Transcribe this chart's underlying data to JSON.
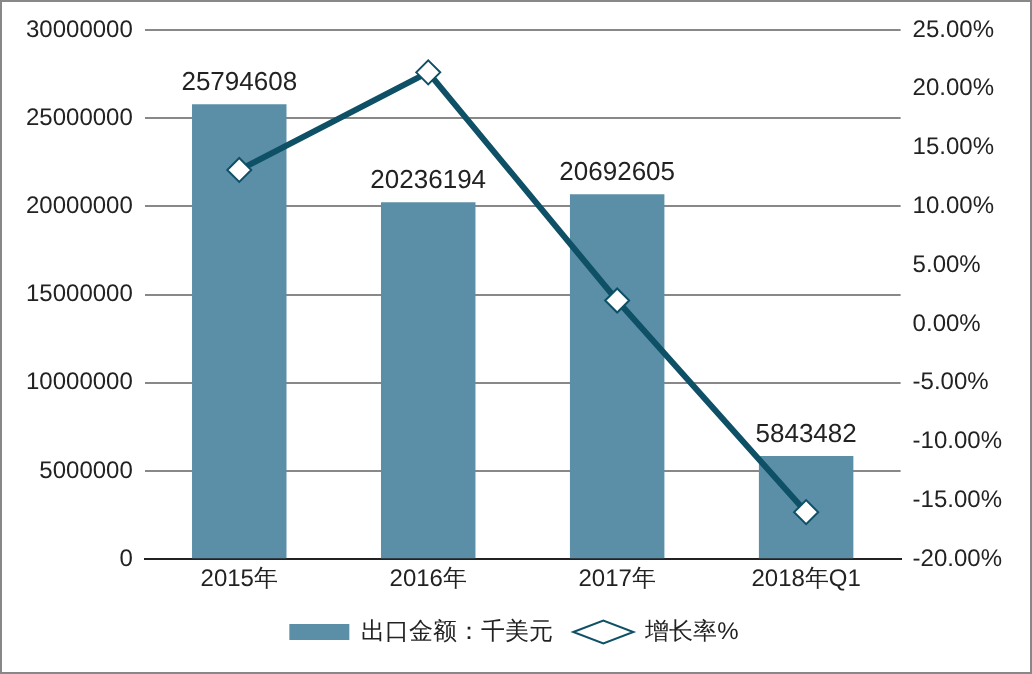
{
  "chart_data": {
    "type": "bar",
    "categories": [
      "2015年",
      "2016年",
      "2017年",
      "2018年Q1"
    ],
    "series": [
      {
        "name": "出口金额：千美元",
        "color": "#5b8fa8",
        "values": [
          25794608,
          20236194,
          20692605,
          5843482
        ],
        "value_labels": [
          "25794608",
          "20236194",
          "20692605",
          "5843482"
        ]
      },
      {
        "name": "增长率%",
        "type": "line",
        "axis": "y2",
        "color": "#0e5066",
        "values": [
          13.1,
          21.4,
          2.0,
          -16.0
        ],
        "marker": "diamond",
        "line_style": "solid"
      }
    ],
    "ylim": [
      0,
      30000000
    ],
    "yticks": [
      0,
      5000000,
      10000000,
      15000000,
      20000000,
      25000000,
      30000000
    ],
    "y2lim": [
      -20,
      25
    ],
    "y2ticks": [
      {
        "value": -20,
        "label": "-20.00%"
      },
      {
        "value": -15,
        "label": "-15.00%"
      },
      {
        "value": -10,
        "label": "-10.00%"
      },
      {
        "value": -5,
        "label": "-5.00%"
      },
      {
        "value": 0,
        "label": "0.00%"
      },
      {
        "value": 5,
        "label": "5.00%"
      },
      {
        "value": 10,
        "label": "10.00%"
      },
      {
        "value": 15,
        "label": "15.00%"
      },
      {
        "value": 20,
        "label": "20.00%"
      },
      {
        "value": 25,
        "label": "25.00%"
      }
    ],
    "grid": "y",
    "legend": "bottom"
  }
}
